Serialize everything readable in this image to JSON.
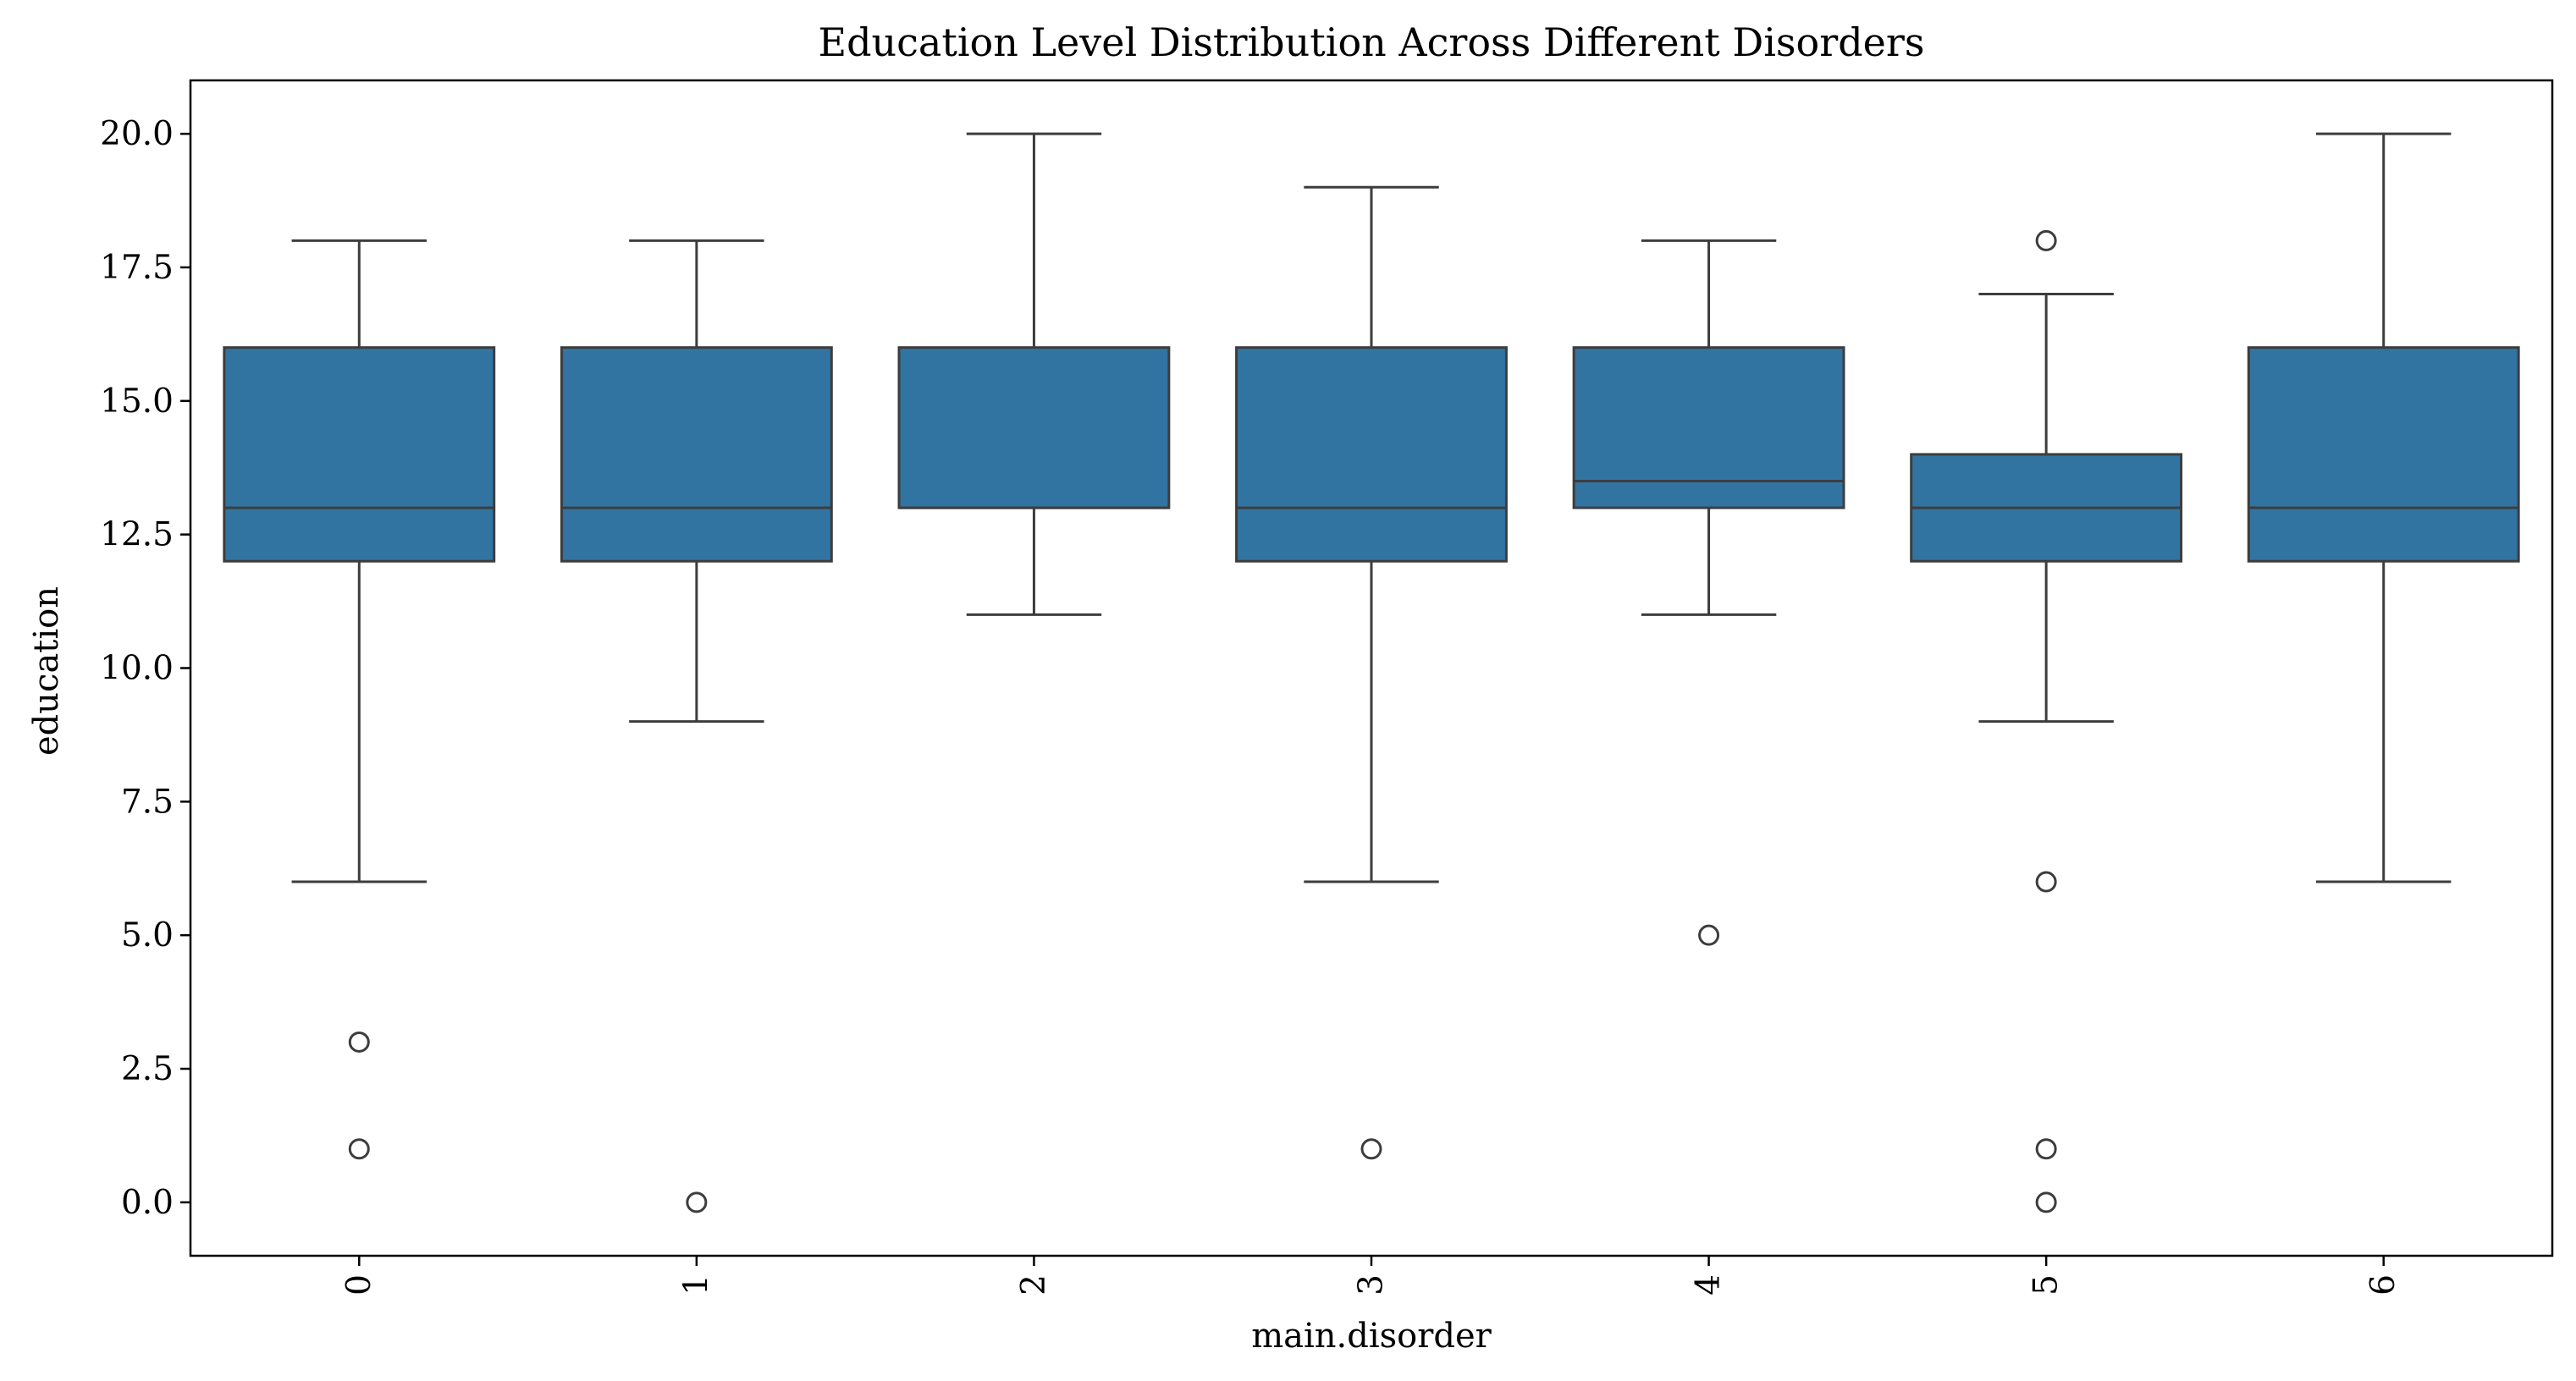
{
  "chart_data": {
    "type": "box",
    "title": "Education Level Distribution Across Different Disorders",
    "xlabel": "main.disorder",
    "ylabel": "education",
    "categories": [
      "0",
      "1",
      "2",
      "3",
      "4",
      "5",
      "6"
    ],
    "ylim": [
      -1,
      21
    ],
    "yticks": [
      0.0,
      2.5,
      5.0,
      7.5,
      10.0,
      12.5,
      15.0,
      17.5,
      20.0
    ],
    "ytick_labels": [
      "0.0",
      "2.5",
      "5.0",
      "7.5",
      "10.0",
      "12.5",
      "15.0",
      "17.5",
      "20.0"
    ],
    "x_tick_rotation": "vertical",
    "grid": false,
    "legend": "none",
    "box_color": "#3274a1",
    "line_color": "#3d3d3d",
    "boxes": [
      {
        "category": "0",
        "whisker_low": 6,
        "q1": 12,
        "median": 13,
        "q3": 16,
        "whisker_high": 18,
        "outliers": [
          3,
          1
        ]
      },
      {
        "category": "1",
        "whisker_low": 9,
        "q1": 12,
        "median": 13,
        "q3": 16,
        "whisker_high": 18,
        "outliers": [
          0
        ]
      },
      {
        "category": "2",
        "whisker_low": 11,
        "q1": 13,
        "median": 13,
        "q3": 16,
        "whisker_high": 20,
        "outliers": []
      },
      {
        "category": "3",
        "whisker_low": 6,
        "q1": 12,
        "median": 13,
        "q3": 16,
        "whisker_high": 19,
        "outliers": [
          1
        ]
      },
      {
        "category": "4",
        "whisker_low": 11,
        "q1": 13,
        "median": 13.5,
        "q3": 16,
        "whisker_high": 18,
        "outliers": [
          5
        ]
      },
      {
        "category": "5",
        "whisker_low": 9,
        "q1": 12,
        "median": 13,
        "q3": 14,
        "whisker_high": 17,
        "outliers": [
          18,
          6,
          1,
          0
        ]
      },
      {
        "category": "6",
        "whisker_low": 6,
        "q1": 12,
        "median": 13,
        "q3": 16,
        "whisker_high": 20,
        "outliers": []
      }
    ]
  }
}
